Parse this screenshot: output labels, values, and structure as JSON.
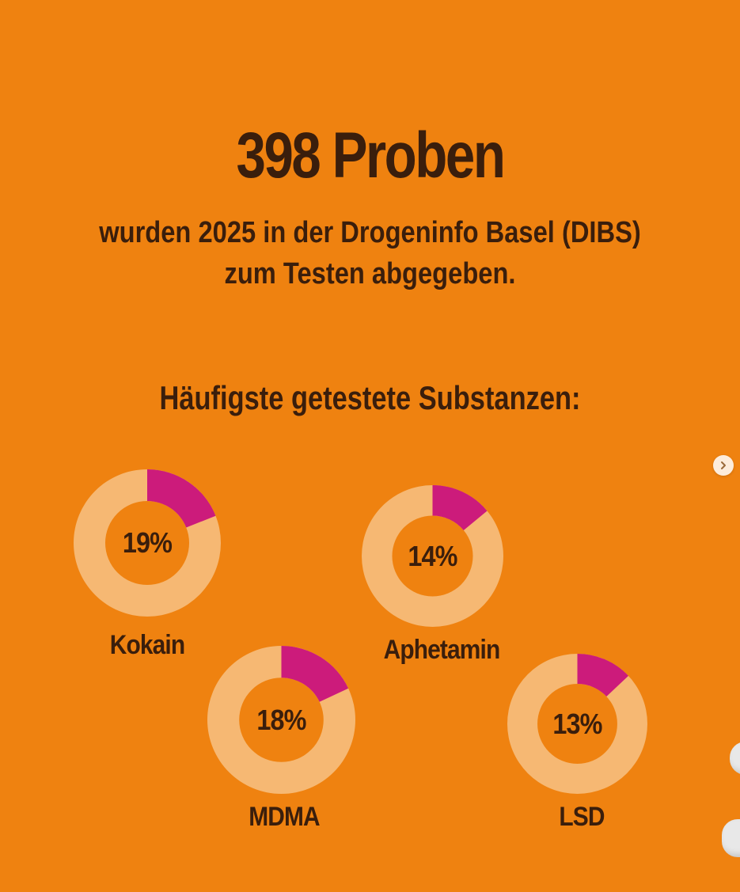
{
  "headline": "398 Proben",
  "subline": {
    "line1": "wurden 2025 in der Drogeninfo Basel (DIBS)",
    "line2": "zum Testen abgegeben."
  },
  "section_title": "Häufigste getestete Substanzen:",
  "colors": {
    "background": "#ef8210",
    "text": "#3a1e0c",
    "ring": "#f6b873",
    "highlight": "#cc1b7b"
  },
  "icons": {
    "next": "chevron-right-icon",
    "decoration": "pill-icon"
  },
  "chart_data": {
    "type": "donut",
    "series": [
      {
        "name": "Kokain",
        "value": 19,
        "label": "19%"
      },
      {
        "name": "Aphetamin",
        "value": 14,
        "label": "14%"
      },
      {
        "name": "MDMA",
        "value": 18,
        "label": "18%"
      },
      {
        "name": "LSD",
        "value": 13,
        "label": "13%"
      }
    ],
    "unit": "%"
  }
}
